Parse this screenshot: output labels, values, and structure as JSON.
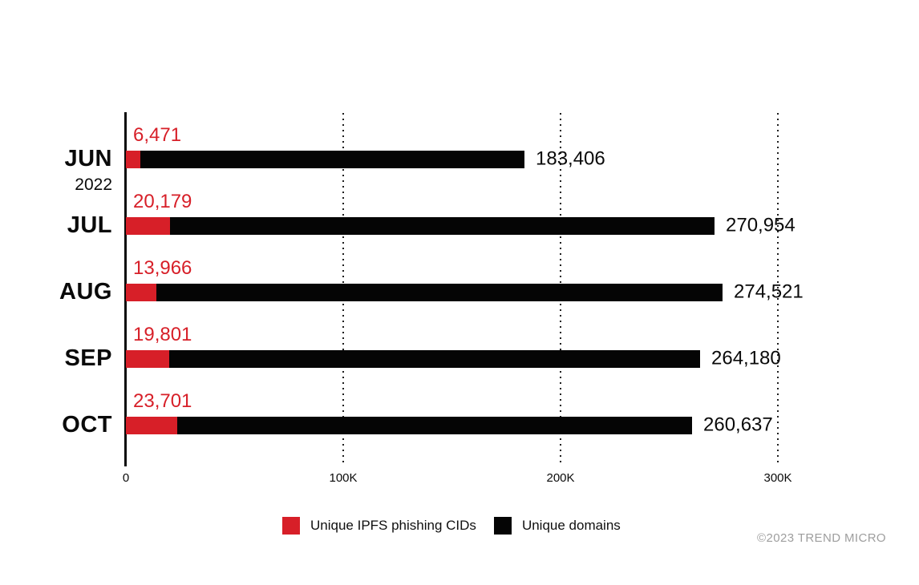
{
  "chart_data": {
    "type": "bar",
    "orientation": "horizontal",
    "title": "",
    "categories": [
      "JUN",
      "JUL",
      "AUG",
      "SEP",
      "OCT"
    ],
    "year_label": "2022",
    "year_under_category_index": 0,
    "series": [
      {
        "name": "Unique IPFS phishing CIDs",
        "color": "#d71f28",
        "values": [
          6471,
          20179,
          13966,
          19801,
          23701
        ],
        "value_labels": [
          "6,471",
          "20,179",
          "13,966",
          "19,801",
          "23,701"
        ]
      },
      {
        "name": "Unique domains",
        "color": "#050505",
        "values": [
          183406,
          270954,
          274521,
          264180,
          260637
        ],
        "value_labels": [
          "183,406",
          "270,954",
          "274,521",
          "264,180",
          "260,637"
        ]
      }
    ],
    "x_axis": {
      "ticks": [
        "0",
        "100K",
        "200K",
        "300K"
      ],
      "tick_values": [
        0,
        100000,
        200000,
        300000
      ],
      "range": [
        0,
        300000
      ],
      "grid": "dotted-vertical"
    },
    "legend": [
      {
        "label": "Unique IPFS phishing CIDs",
        "color": "#d71f28"
      },
      {
        "label": "Unique domains",
        "color": "#050505"
      }
    ],
    "legend_position": "bottom"
  },
  "footer": {
    "copyright": "©2023 TREND MICRO"
  },
  "colors": {
    "accent_red": "#d71f28",
    "bar_black": "#050505",
    "grid": "#1f1f1f",
    "copyright_gray": "#9e9e9e",
    "background": "#ffffff"
  }
}
